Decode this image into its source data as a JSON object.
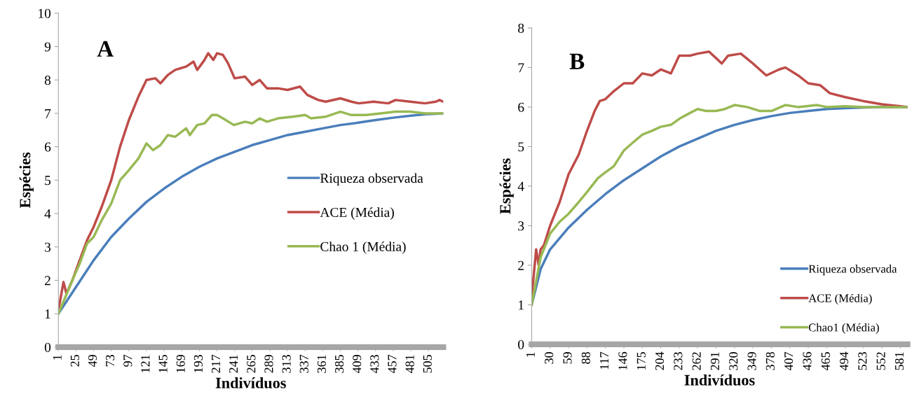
{
  "chart_data": [
    {
      "type": "line",
      "annotations": [
        "A"
      ],
      "xlabel": "Indivíduos",
      "ylabel": "Espécies",
      "xlim": [
        1,
        525
      ],
      "ylim": [
        0,
        10
      ],
      "xticks": [
        1,
        25,
        49,
        73,
        97,
        121,
        145,
        169,
        193,
        217,
        241,
        265,
        289,
        313,
        337,
        361,
        385,
        409,
        433,
        457,
        481,
        505
      ],
      "yticks": [
        0,
        1,
        2,
        3,
        4,
        5,
        6,
        7,
        8,
        9,
        10
      ],
      "legend": "center right",
      "line_style": "solid",
      "series": [
        {
          "name": "Riqueza observada",
          "color": "#4a7ebb",
          "x": [
            1,
            25,
            49,
            73,
            97,
            121,
            145,
            169,
            193,
            217,
            241,
            265,
            289,
            313,
            337,
            361,
            385,
            409,
            433,
            457,
            481,
            505,
            525
          ],
          "values": [
            1.0,
            1.8,
            2.6,
            3.3,
            3.85,
            4.35,
            4.75,
            5.1,
            5.4,
            5.65,
            5.85,
            6.05,
            6.2,
            6.35,
            6.45,
            6.55,
            6.65,
            6.72,
            6.8,
            6.87,
            6.93,
            6.98,
            7.0
          ]
        },
        {
          "name": "ACE (Média)",
          "color": "#be4b48",
          "x": [
            1,
            8,
            12,
            20,
            30,
            40,
            49,
            60,
            73,
            85,
            97,
            110,
            121,
            133,
            140,
            150,
            160,
            175,
            185,
            190,
            200,
            205,
            212,
            217,
            225,
            232,
            241,
            255,
            265,
            275,
            285,
            300,
            313,
            330,
            340,
            355,
            365,
            385,
            400,
            410,
            430,
            450,
            460,
            480,
            500,
            515,
            520,
            525
          ],
          "values": [
            1.1,
            1.95,
            1.6,
            2.0,
            2.6,
            3.2,
            3.6,
            4.2,
            5.0,
            6.0,
            6.8,
            7.5,
            8.0,
            8.05,
            7.9,
            8.15,
            8.3,
            8.4,
            8.55,
            8.3,
            8.6,
            8.8,
            8.6,
            8.8,
            8.75,
            8.5,
            8.05,
            8.1,
            7.85,
            8.0,
            7.75,
            7.75,
            7.7,
            7.8,
            7.55,
            7.4,
            7.35,
            7.45,
            7.35,
            7.3,
            7.35,
            7.3,
            7.4,
            7.35,
            7.3,
            7.35,
            7.4,
            7.35
          ]
        },
        {
          "name": "Chao 1 (Média)",
          "color": "#98b954",
          "x": [
            1,
            20,
            30,
            40,
            49,
            60,
            73,
            85,
            97,
            110,
            121,
            130,
            140,
            150,
            160,
            175,
            180,
            190,
            200,
            210,
            217,
            225,
            240,
            255,
            265,
            275,
            285,
            300,
            320,
            337,
            345,
            365,
            385,
            400,
            420,
            440,
            460,
            480,
            500,
            525
          ],
          "values": [
            1.0,
            2.0,
            2.5,
            3.1,
            3.3,
            3.8,
            4.3,
            5.0,
            5.3,
            5.65,
            6.1,
            5.9,
            6.05,
            6.35,
            6.3,
            6.55,
            6.35,
            6.65,
            6.7,
            6.95,
            6.95,
            6.85,
            6.65,
            6.75,
            6.7,
            6.85,
            6.75,
            6.85,
            6.9,
            6.95,
            6.85,
            6.9,
            7.05,
            6.95,
            6.95,
            7.0,
            7.05,
            7.05,
            7.0,
            7.0
          ]
        }
      ]
    },
    {
      "type": "line",
      "annotations": [
        "B"
      ],
      "xlabel": "Indivíduos",
      "ylabel": "Espécies",
      "xlim": [
        1,
        592
      ],
      "ylim": [
        0,
        8
      ],
      "xticks": [
        1,
        30,
        59,
        88,
        117,
        146,
        175,
        204,
        233,
        262,
        291,
        320,
        349,
        378,
        407,
        436,
        465,
        494,
        523,
        552,
        581
      ],
      "yticks": [
        0,
        1,
        2,
        3,
        4,
        5,
        6,
        7,
        8
      ],
      "legend": "lower right",
      "line_style": "solid",
      "series": [
        {
          "name": "Riqueza observada",
          "color": "#4a7ebb",
          "x": [
            1,
            15,
            30,
            59,
            88,
            117,
            146,
            175,
            204,
            233,
            262,
            291,
            320,
            349,
            378,
            407,
            436,
            465,
            494,
            523,
            552,
            592
          ],
          "values": [
            1.0,
            1.9,
            2.4,
            2.95,
            3.4,
            3.8,
            4.15,
            4.45,
            4.75,
            5.0,
            5.2,
            5.4,
            5.55,
            5.67,
            5.77,
            5.85,
            5.9,
            5.95,
            5.97,
            5.99,
            6.0,
            6.0
          ]
        },
        {
          "name": "ACE (Média)",
          "color": "#be4b48",
          "x": [
            1,
            8,
            12,
            15,
            20,
            30,
            45,
            59,
            75,
            88,
            100,
            108,
            117,
            130,
            146,
            160,
            175,
            190,
            204,
            220,
            233,
            250,
            262,
            280,
            300,
            310,
            330,
            349,
            370,
            390,
            400,
            420,
            436,
            455,
            470,
            494,
            523,
            552,
            581,
            592
          ],
          "values": [
            1.2,
            2.4,
            2.0,
            2.4,
            2.5,
            3.0,
            3.6,
            4.3,
            4.8,
            5.4,
            5.9,
            6.15,
            6.2,
            6.4,
            6.6,
            6.6,
            6.85,
            6.8,
            6.95,
            6.85,
            7.3,
            7.3,
            7.35,
            7.4,
            7.1,
            7.3,
            7.35,
            7.1,
            6.8,
            6.95,
            7.0,
            6.8,
            6.6,
            6.55,
            6.35,
            6.25,
            6.15,
            6.07,
            6.02,
            6.0
          ]
        },
        {
          "name": "Chao1 (Média)",
          "color": "#98b954",
          "x": [
            1,
            15,
            30,
            45,
            59,
            75,
            88,
            105,
            117,
            130,
            146,
            160,
            175,
            190,
            204,
            220,
            233,
            250,
            262,
            275,
            291,
            305,
            320,
            340,
            360,
            378,
            400,
            420,
            450,
            465,
            494,
            523,
            592
          ],
          "values": [
            1.0,
            2.2,
            2.8,
            3.1,
            3.3,
            3.6,
            3.85,
            4.2,
            4.35,
            4.5,
            4.9,
            5.1,
            5.3,
            5.4,
            5.5,
            5.55,
            5.7,
            5.85,
            5.95,
            5.9,
            5.9,
            5.95,
            6.05,
            6.0,
            5.9,
            5.9,
            6.05,
            6.0,
            6.05,
            6.0,
            6.02,
            6.0,
            6.0
          ]
        }
      ]
    }
  ]
}
